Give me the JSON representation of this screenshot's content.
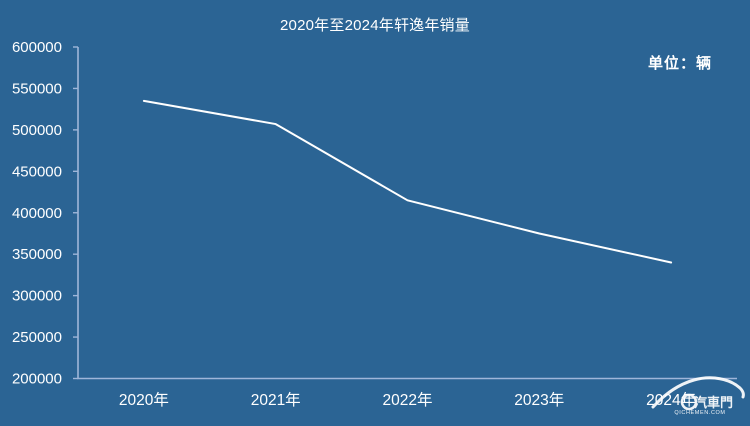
{
  "chart": {
    "title": "2020年至2024年轩逸年销量",
    "unit_label": "单位：辆"
  },
  "chart_data": {
    "type": "line",
    "title": "2020年至2024年轩逸年销量",
    "categories": [
      "2020年",
      "2021年",
      "2022年",
      "2023年",
      "2024年"
    ],
    "series": [
      {
        "name": "轩逸年销量",
        "values": [
          535000,
          507000,
          415000,
          375000,
          340000
        ]
      }
    ],
    "xlabel": "",
    "ylabel": "",
    "unit": "辆",
    "ylim": [
      200000,
      600000
    ],
    "ytick_step": 50000,
    "yticks": [
      600000,
      550000,
      500000,
      450000,
      400000,
      350000,
      300000,
      250000,
      200000
    ],
    "grid": false,
    "legend": "none"
  },
  "watermark": {
    "text": "汽車門",
    "subtext": "QICHEMEN.COM"
  },
  "colors": {
    "background": "#2B6494",
    "axis": "#9FB6D9",
    "line": "#FFFFFF",
    "text": "#FFFFFF"
  }
}
